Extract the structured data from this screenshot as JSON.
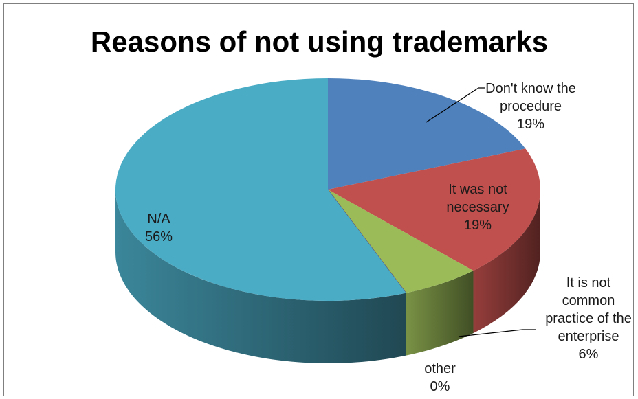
{
  "chart_data": {
    "type": "pie",
    "title": "Reasons of not using trademarks",
    "slices": [
      {
        "label": "Don't know the procedure",
        "value": 19,
        "percent_label": "19%",
        "color": "#4f81bd"
      },
      {
        "label": "It was not necessary",
        "value": 19,
        "percent_label": "19%",
        "color": "#c0504d"
      },
      {
        "label": "It is not common practice of the enterprise",
        "value": 6,
        "percent_label": "6%",
        "color": "#9bbb59"
      },
      {
        "label": "other",
        "value": 0,
        "percent_label": "0%",
        "color": "#5a3e73"
      },
      {
        "label": "N/A",
        "value": 56,
        "percent_label": "56%",
        "color": "#4bacc6"
      }
    ],
    "label_lines": {
      "s0": [
        "Don't know the",
        "procedure",
        "19%"
      ],
      "s1": [
        "It was not",
        "necessary",
        "19%"
      ],
      "s2": [
        "It is not",
        "common",
        "practice of the",
        "enterprise",
        "6%"
      ],
      "s3": [
        "other",
        "0%"
      ],
      "s4": [
        "N/A",
        "56%"
      ]
    },
    "style": "3d-pie",
    "legend": "none"
  }
}
